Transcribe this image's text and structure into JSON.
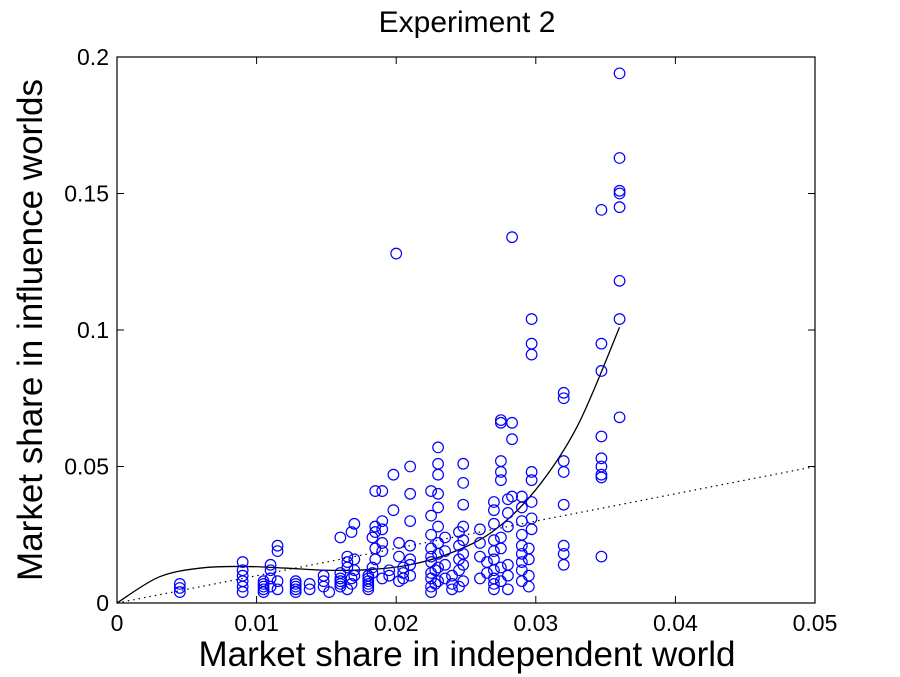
{
  "chart_data": {
    "type": "scatter",
    "title": "Experiment 2",
    "xlabel": "Market share in independent world",
    "ylabel": "Market share in influence worlds",
    "xlim": [
      0,
      0.05
    ],
    "ylim": [
      0,
      0.2
    ],
    "x_ticks": [
      "0",
      "0.01",
      "0.02",
      "0.03",
      "0.04",
      "0.05"
    ],
    "y_ticks": [
      "0",
      "0.05",
      "0.1",
      "0.15",
      "0.2"
    ],
    "grid": false,
    "marker_color": "#0000ff",
    "fit_line": {
      "style": "solid",
      "color": "#000000",
      "x": [
        0,
        0.003,
        0.006,
        0.009,
        0.012,
        0.015,
        0.018,
        0.021,
        0.024,
        0.027,
        0.03,
        0.033,
        0.036
      ],
      "y": [
        0,
        0.0095,
        0.0128,
        0.0134,
        0.0128,
        0.012,
        0.0122,
        0.014,
        0.0185,
        0.0265,
        0.0415,
        0.065,
        0.101
      ]
    },
    "reference_line": {
      "style": "dotted",
      "color": "#000000",
      "x": [
        0,
        0.05
      ],
      "y": [
        0,
        0.05
      ]
    },
    "series": [
      {
        "points": [
          [
            0.0045,
            0.004
          ],
          [
            0.0045,
            0.0055
          ],
          [
            0.0045,
            0.007
          ],
          [
            0.009,
            0.004
          ],
          [
            0.009,
            0.006
          ],
          [
            0.009,
            0.008
          ],
          [
            0.009,
            0.01
          ],
          [
            0.009,
            0.012
          ],
          [
            0.009,
            0.015
          ],
          [
            0.0105,
            0.004
          ],
          [
            0.0105,
            0.005
          ],
          [
            0.0105,
            0.006
          ],
          [
            0.0105,
            0.007
          ],
          [
            0.0105,
            0.008
          ],
          [
            0.011,
            0.006
          ],
          [
            0.011,
            0.009
          ],
          [
            0.011,
            0.012
          ],
          [
            0.011,
            0.014
          ],
          [
            0.0115,
            0.005
          ],
          [
            0.0115,
            0.008
          ],
          [
            0.0115,
            0.019
          ],
          [
            0.0115,
            0.021
          ],
          [
            0.0128,
            0.004
          ],
          [
            0.0128,
            0.005
          ],
          [
            0.0128,
            0.006
          ],
          [
            0.0128,
            0.007
          ],
          [
            0.0128,
            0.008
          ],
          [
            0.0138,
            0.005
          ],
          [
            0.0138,
            0.007
          ],
          [
            0.0148,
            0.006
          ],
          [
            0.0148,
            0.008
          ],
          [
            0.0148,
            0.01
          ],
          [
            0.0152,
            0.004
          ],
          [
            0.016,
            0.006
          ],
          [
            0.016,
            0.007
          ],
          [
            0.016,
            0.008
          ],
          [
            0.016,
            0.009
          ],
          [
            0.016,
            0.011
          ],
          [
            0.016,
            0.024
          ],
          [
            0.0165,
            0.005
          ],
          [
            0.0165,
            0.013
          ],
          [
            0.0165,
            0.015
          ],
          [
            0.0165,
            0.017
          ],
          [
            0.0168,
            0.007
          ],
          [
            0.0168,
            0.009
          ],
          [
            0.0168,
            0.026
          ],
          [
            0.017,
            0.01
          ],
          [
            0.017,
            0.012
          ],
          [
            0.017,
            0.016
          ],
          [
            0.017,
            0.029
          ],
          [
            0.018,
            0.005
          ],
          [
            0.018,
            0.006
          ],
          [
            0.018,
            0.007
          ],
          [
            0.018,
            0.008
          ],
          [
            0.018,
            0.009
          ],
          [
            0.018,
            0.01
          ],
          [
            0.0183,
            0.011
          ],
          [
            0.0183,
            0.013
          ],
          [
            0.0183,
            0.024
          ],
          [
            0.0185,
            0.016
          ],
          [
            0.0185,
            0.02
          ],
          [
            0.0185,
            0.026
          ],
          [
            0.0185,
            0.028
          ],
          [
            0.0185,
            0.041
          ],
          [
            0.019,
            0.009
          ],
          [
            0.019,
            0.019
          ],
          [
            0.019,
            0.022
          ],
          [
            0.019,
            0.027
          ],
          [
            0.019,
            0.03
          ],
          [
            0.019,
            0.041
          ],
          [
            0.0195,
            0.01
          ],
          [
            0.0195,
            0.012
          ],
          [
            0.0198,
            0.034
          ],
          [
            0.0198,
            0.047
          ],
          [
            0.02,
            0.128
          ],
          [
            0.0202,
            0.008
          ],
          [
            0.0202,
            0.017
          ],
          [
            0.0202,
            0.022
          ],
          [
            0.0205,
            0.009
          ],
          [
            0.0205,
            0.011
          ],
          [
            0.0205,
            0.013
          ],
          [
            0.021,
            0.01
          ],
          [
            0.021,
            0.014
          ],
          [
            0.021,
            0.016
          ],
          [
            0.021,
            0.021
          ],
          [
            0.021,
            0.03
          ],
          [
            0.021,
            0.04
          ],
          [
            0.021,
            0.05
          ],
          [
            0.0225,
            0.004
          ],
          [
            0.0225,
            0.006
          ],
          [
            0.0225,
            0.009
          ],
          [
            0.0225,
            0.011
          ],
          [
            0.0225,
            0.015
          ],
          [
            0.0225,
            0.017
          ],
          [
            0.0225,
            0.02
          ],
          [
            0.0225,
            0.025
          ],
          [
            0.0225,
            0.032
          ],
          [
            0.0225,
            0.041
          ],
          [
            0.0228,
            0.007
          ],
          [
            0.0228,
            0.012
          ],
          [
            0.023,
            0.008
          ],
          [
            0.023,
            0.013
          ],
          [
            0.023,
            0.018
          ],
          [
            0.023,
            0.022
          ],
          [
            0.023,
            0.028
          ],
          [
            0.023,
            0.035
          ],
          [
            0.023,
            0.04
          ],
          [
            0.023,
            0.047
          ],
          [
            0.023,
            0.051
          ],
          [
            0.023,
            0.057
          ],
          [
            0.0235,
            0.009
          ],
          [
            0.0235,
            0.014
          ],
          [
            0.0235,
            0.019
          ],
          [
            0.0235,
            0.024
          ],
          [
            0.024,
            0.005
          ],
          [
            0.024,
            0.007
          ],
          [
            0.024,
            0.01
          ],
          [
            0.0245,
            0.006
          ],
          [
            0.0245,
            0.012
          ],
          [
            0.0245,
            0.016
          ],
          [
            0.0245,
            0.021
          ],
          [
            0.0245,
            0.026
          ],
          [
            0.0248,
            0.008
          ],
          [
            0.0248,
            0.014
          ],
          [
            0.0248,
            0.018
          ],
          [
            0.0248,
            0.023
          ],
          [
            0.0248,
            0.028
          ],
          [
            0.0248,
            0.036
          ],
          [
            0.0248,
            0.044
          ],
          [
            0.0248,
            0.051
          ],
          [
            0.026,
            0.009
          ],
          [
            0.026,
            0.017
          ],
          [
            0.026,
            0.022
          ],
          [
            0.026,
            0.027
          ],
          [
            0.0265,
            0.011
          ],
          [
            0.0265,
            0.015
          ],
          [
            0.027,
            0.005
          ],
          [
            0.027,
            0.007
          ],
          [
            0.027,
            0.009
          ],
          [
            0.027,
            0.012
          ],
          [
            0.027,
            0.016
          ],
          [
            0.027,
            0.019
          ],
          [
            0.027,
            0.023
          ],
          [
            0.027,
            0.029
          ],
          [
            0.027,
            0.034
          ],
          [
            0.027,
            0.037
          ],
          [
            0.0275,
            0.008
          ],
          [
            0.0275,
            0.013
          ],
          [
            0.0275,
            0.02
          ],
          [
            0.0275,
            0.024
          ],
          [
            0.0275,
            0.045
          ],
          [
            0.0275,
            0.048
          ],
          [
            0.0275,
            0.052
          ],
          [
            0.0275,
            0.066
          ],
          [
            0.0275,
            0.067
          ],
          [
            0.028,
            0.005
          ],
          [
            0.028,
            0.01
          ],
          [
            0.028,
            0.014
          ],
          [
            0.028,
            0.028
          ],
          [
            0.028,
            0.033
          ],
          [
            0.028,
            0.038
          ],
          [
            0.0283,
            0.039
          ],
          [
            0.0283,
            0.06
          ],
          [
            0.0283,
            0.066
          ],
          [
            0.0283,
            0.134
          ],
          [
            0.029,
            0.008
          ],
          [
            0.029,
            0.012
          ],
          [
            0.029,
            0.015
          ],
          [
            0.029,
            0.018
          ],
          [
            0.029,
            0.021
          ],
          [
            0.029,
            0.025
          ],
          [
            0.029,
            0.03
          ],
          [
            0.029,
            0.035
          ],
          [
            0.029,
            0.039
          ],
          [
            0.0295,
            0.006
          ],
          [
            0.0295,
            0.01
          ],
          [
            0.0295,
            0.016
          ],
          [
            0.0295,
            0.02
          ],
          [
            0.0297,
            0.027
          ],
          [
            0.0297,
            0.031
          ],
          [
            0.0297,
            0.037
          ],
          [
            0.0297,
            0.045
          ],
          [
            0.0297,
            0.048
          ],
          [
            0.0297,
            0.091
          ],
          [
            0.0297,
            0.095
          ],
          [
            0.0297,
            0.104
          ],
          [
            0.032,
            0.014
          ],
          [
            0.032,
            0.018
          ],
          [
            0.032,
            0.021
          ],
          [
            0.032,
            0.036
          ],
          [
            0.032,
            0.048
          ],
          [
            0.032,
            0.052
          ],
          [
            0.032,
            0.075
          ],
          [
            0.032,
            0.077
          ],
          [
            0.0347,
            0.017
          ],
          [
            0.0347,
            0.046
          ],
          [
            0.0347,
            0.047
          ],
          [
            0.0347,
            0.05
          ],
          [
            0.0347,
            0.053
          ],
          [
            0.0347,
            0.061
          ],
          [
            0.0347,
            0.085
          ],
          [
            0.0347,
            0.095
          ],
          [
            0.0347,
            0.144
          ],
          [
            0.036,
            0.068
          ],
          [
            0.036,
            0.104
          ],
          [
            0.036,
            0.118
          ],
          [
            0.036,
            0.145
          ],
          [
            0.036,
            0.15
          ],
          [
            0.036,
            0.151
          ],
          [
            0.036,
            0.163
          ],
          [
            0.036,
            0.194
          ]
        ]
      }
    ]
  }
}
